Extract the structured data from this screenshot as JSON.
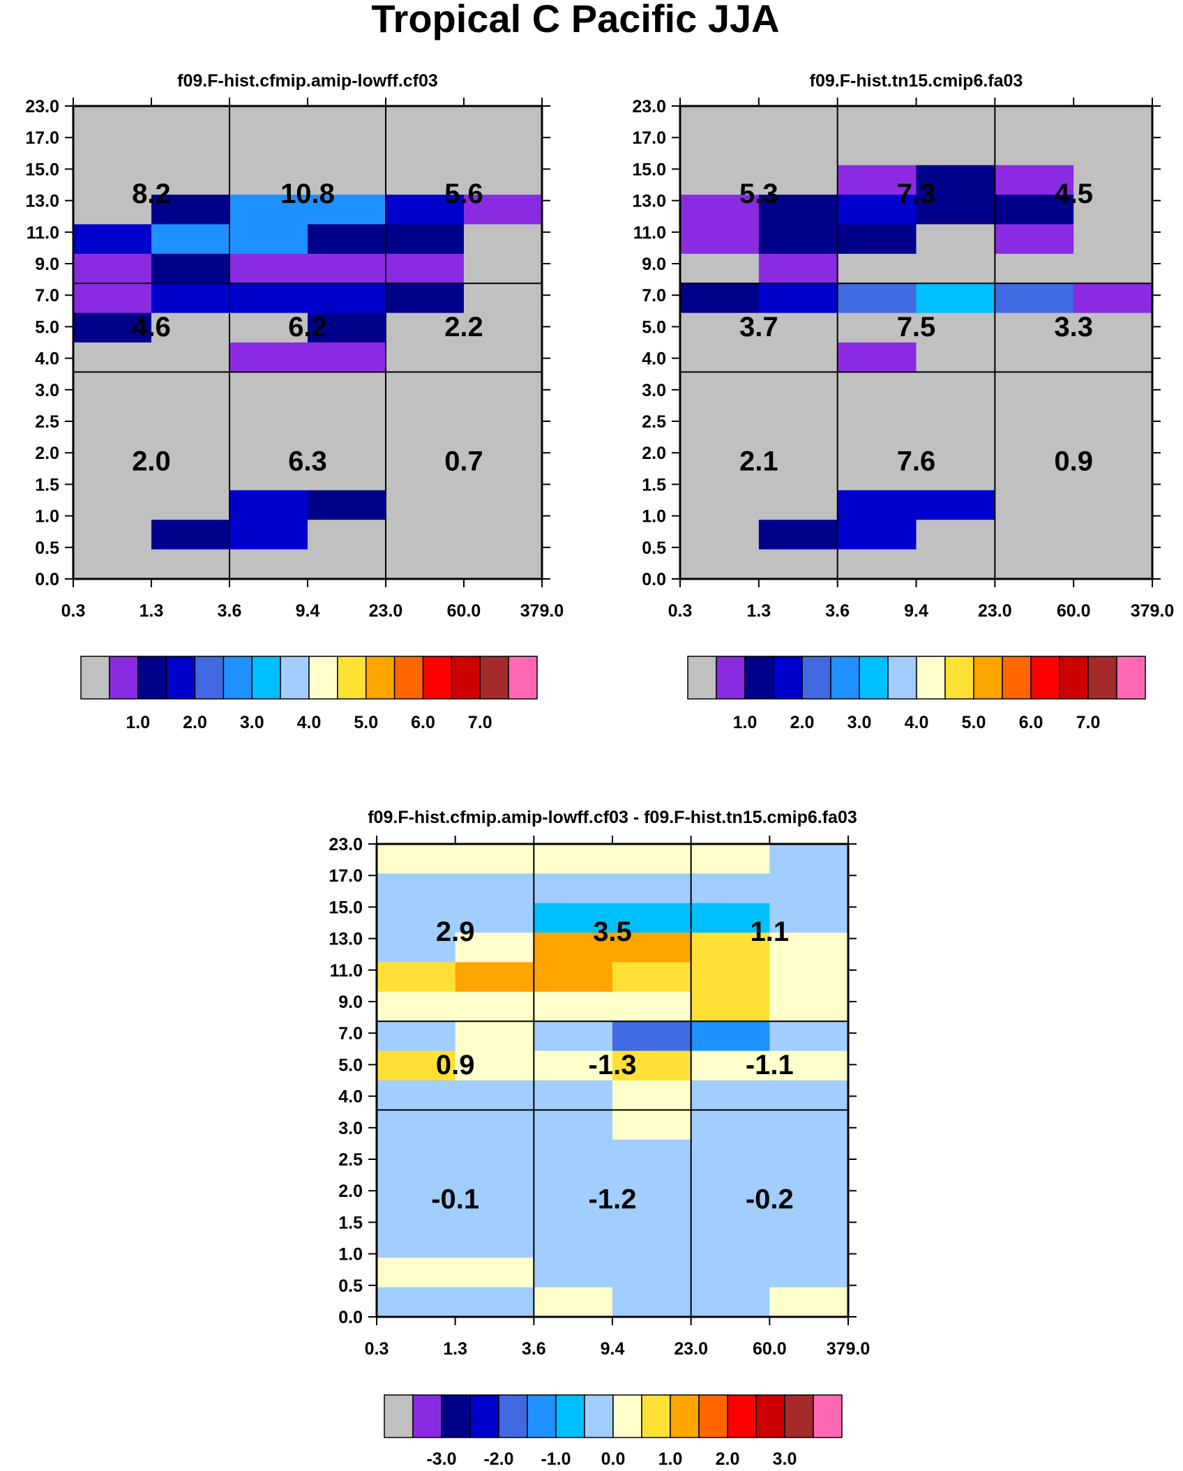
{
  "title": "Tropical C Pacific JJA",
  "colors": {
    "missing": "#C0C0C0",
    "palette": [
      "#C0C0C0",
      "#8A2BE2",
      "#00008B",
      "#0000CD",
      "#4169E1",
      "#1E90FF",
      "#00BFFF",
      "#A2CDFF",
      "#FFFFCC",
      "#FFE135",
      "#FFA500",
      "#FF6600",
      "#FF0000",
      "#CC0000",
      "#A52A2A",
      "#FF69B4"
    ]
  },
  "chart_data": [
    {
      "type": "heatmap",
      "title": "f09.F-hist.cfmip.amip-lowff.cf03",
      "xlabel": "",
      "ylabel": "",
      "x_ticks": [
        "0.3",
        "1.3",
        "3.6",
        "9.4",
        "23.0",
        "60.0",
        "379.0"
      ],
      "y_ticks": [
        "0.0",
        "0.5",
        "1.0",
        "1.5",
        "2.0",
        "2.5",
        "3.0",
        "4.0",
        "5.0",
        "7.0",
        "9.0",
        "11.0",
        "13.0",
        "15.0",
        "17.0",
        "23.0"
      ],
      "cells_color_index_top_to_bottom": [
        [
          0,
          0,
          0,
          0,
          0,
          0
        ],
        [
          0,
          0,
          0,
          0,
          0,
          0
        ],
        [
          0,
          0,
          0,
          0,
          0,
          0
        ],
        [
          0,
          2,
          5,
          5,
          3,
          1
        ],
        [
          3,
          5,
          5,
          2,
          2,
          0
        ],
        [
          1,
          2,
          1,
          1,
          1,
          0
        ],
        [
          1,
          3,
          3,
          3,
          2,
          0
        ],
        [
          2,
          0,
          0,
          2,
          0,
          0
        ],
        [
          0,
          0,
          1,
          1,
          0,
          0
        ],
        [
          0,
          0,
          0,
          0,
          0,
          0
        ],
        [
          0,
          0,
          0,
          0,
          0,
          0
        ],
        [
          0,
          0,
          0,
          0,
          0,
          0
        ],
        [
          0,
          0,
          0,
          0,
          0,
          0
        ],
        [
          0,
          0,
          3,
          2,
          0,
          0
        ],
        [
          0,
          2,
          3,
          0,
          0,
          0
        ],
        [
          0,
          0,
          0,
          0,
          0,
          0
        ]
      ],
      "region_values": [
        [
          "8.2",
          "10.8",
          "5.6"
        ],
        [
          "4.6",
          "6.2",
          "2.2"
        ],
        [
          "2.0",
          "6.3",
          "0.7"
        ]
      ],
      "colorbar_labels": [
        "1.0",
        "2.0",
        "3.0",
        "4.0",
        "5.0",
        "6.0",
        "7.0"
      ]
    },
    {
      "type": "heatmap",
      "title": "f09.F-hist.tn15.cmip6.fa03",
      "xlabel": "",
      "ylabel": "",
      "x_ticks": [
        "0.3",
        "1.3",
        "3.6",
        "9.4",
        "23.0",
        "60.0",
        "379.0"
      ],
      "y_ticks": [
        "0.0",
        "0.5",
        "1.0",
        "1.5",
        "2.0",
        "2.5",
        "3.0",
        "4.0",
        "5.0",
        "7.0",
        "9.0",
        "11.0",
        "13.0",
        "15.0",
        "17.0",
        "23.0"
      ],
      "cells_color_index_top_to_bottom": [
        [
          0,
          0,
          0,
          0,
          0,
          0
        ],
        [
          0,
          0,
          0,
          0,
          0,
          0
        ],
        [
          0,
          0,
          1,
          2,
          1,
          0
        ],
        [
          1,
          2,
          3,
          2,
          2,
          0
        ],
        [
          1,
          2,
          2,
          0,
          1,
          0
        ],
        [
          0,
          1,
          0,
          0,
          0,
          0
        ],
        [
          2,
          3,
          4,
          6,
          4,
          1
        ],
        [
          0,
          0,
          0,
          0,
          0,
          0
        ],
        [
          0,
          0,
          1,
          0,
          0,
          0
        ],
        [
          0,
          0,
          0,
          0,
          0,
          0
        ],
        [
          0,
          0,
          0,
          0,
          0,
          0
        ],
        [
          0,
          0,
          0,
          0,
          0,
          0
        ],
        [
          0,
          0,
          0,
          0,
          0,
          0
        ],
        [
          0,
          0,
          3,
          3,
          0,
          0
        ],
        [
          0,
          2,
          3,
          0,
          0,
          0
        ],
        [
          0,
          0,
          0,
          0,
          0,
          0
        ]
      ],
      "region_values": [
        [
          "5.3",
          "7.3",
          "4.5"
        ],
        [
          "3.7",
          "7.5",
          "3.3"
        ],
        [
          "2.1",
          "7.6",
          "0.9"
        ]
      ],
      "colorbar_labels": [
        "1.0",
        "2.0",
        "3.0",
        "4.0",
        "5.0",
        "6.0",
        "7.0"
      ]
    },
    {
      "type": "heatmap",
      "title": "f09.F-hist.cfmip.amip-lowff.cf03 - f09.F-hist.tn15.cmip6.fa03",
      "xlabel": "",
      "ylabel": "",
      "x_ticks": [
        "0.3",
        "1.3",
        "3.6",
        "9.4",
        "23.0",
        "60.0",
        "379.0"
      ],
      "y_ticks": [
        "0.0",
        "0.5",
        "1.0",
        "1.5",
        "2.0",
        "2.5",
        "3.0",
        "4.0",
        "5.0",
        "7.0",
        "9.0",
        "11.0",
        "13.0",
        "15.0",
        "17.0",
        "23.0"
      ],
      "cells_color_index_top_to_bottom": [
        [
          8,
          8,
          8,
          8,
          8,
          7
        ],
        [
          7,
          7,
          7,
          7,
          7,
          7
        ],
        [
          7,
          7,
          6,
          6,
          6,
          7
        ],
        [
          7,
          8,
          10,
          10,
          9,
          8
        ],
        [
          9,
          10,
          10,
          9,
          9,
          8
        ],
        [
          8,
          8,
          8,
          8,
          9,
          8
        ],
        [
          7,
          8,
          7,
          4,
          5,
          7
        ],
        [
          9,
          8,
          8,
          9,
          8,
          8
        ],
        [
          7,
          7,
          7,
          8,
          7,
          7
        ],
        [
          7,
          7,
          7,
          8,
          7,
          7
        ],
        [
          7,
          7,
          7,
          7,
          7,
          7
        ],
        [
          7,
          7,
          7,
          7,
          7,
          7
        ],
        [
          7,
          7,
          7,
          7,
          7,
          7
        ],
        [
          7,
          7,
          7,
          7,
          7,
          7
        ],
        [
          8,
          8,
          7,
          7,
          7,
          7
        ],
        [
          7,
          7,
          8,
          7,
          7,
          8
        ]
      ],
      "region_values": [
        [
          "2.9",
          "3.5",
          "1.1"
        ],
        [
          "0.9",
          "-1.3",
          "-1.1"
        ],
        [
          "-0.1",
          "-1.2",
          "-0.2"
        ]
      ],
      "colorbar_labels": [
        "-3.0",
        "-2.0",
        "-1.0",
        "0.0",
        "1.0",
        "2.0",
        "3.0"
      ]
    }
  ]
}
